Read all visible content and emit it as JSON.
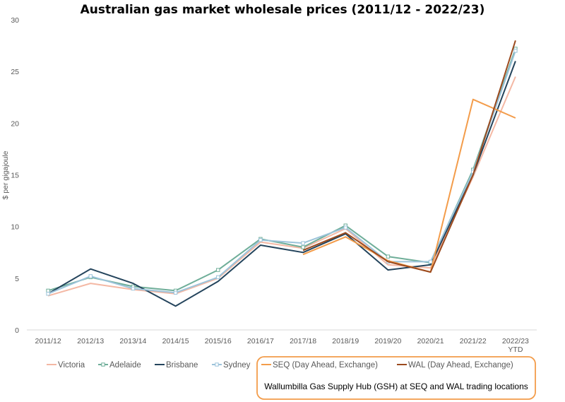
{
  "chart_data": {
    "type": "line",
    "title": "Australian gas market wholesale prices (2011/12 - 2022/23)",
    "xlabel": "",
    "ylabel": "$ per gigajoule",
    "ylim": [
      0,
      30
    ],
    "yticks": [
      0,
      5,
      10,
      15,
      20,
      25,
      30
    ],
    "grid": false,
    "legend_position": "bottom",
    "categories": [
      "2011/12",
      "2012/13",
      "2013/14",
      "2014/15",
      "2015/16",
      "2016/17",
      "2017/18",
      "2018/19",
      "2019/20",
      "2020/21",
      "2021/22",
      "2022/23\nYTD"
    ],
    "series": [
      {
        "name": "Victoria",
        "color": "#f4b8a4",
        "marker": false,
        "values": [
          3.3,
          4.5,
          3.9,
          3.5,
          5.0,
          8.5,
          7.9,
          9.8,
          6.3,
          6.0,
          14.8,
          24.5
        ]
      },
      {
        "name": "Adelaide",
        "color": "#6fae99",
        "marker": true,
        "values": [
          3.8,
          5.1,
          4.2,
          3.8,
          5.8,
          8.8,
          8.0,
          10.1,
          7.1,
          6.5,
          15.5,
          27.2
        ]
      },
      {
        "name": "Brisbane",
        "color": "#24445c",
        "marker": false,
        "values": [
          3.5,
          5.9,
          4.5,
          2.3,
          4.7,
          8.2,
          7.5,
          9.3,
          5.8,
          6.3,
          15.0,
          26.0
        ]
      },
      {
        "name": "Sydney",
        "color": "#9cc3da",
        "marker": true,
        "values": [
          3.5,
          5.2,
          4.0,
          3.6,
          5.1,
          8.7,
          8.4,
          9.9,
          6.6,
          6.6,
          15.3,
          27.0
        ]
      },
      {
        "name": "SEQ (Day Ahead, Exchange)",
        "color": "#f39c4a",
        "marker": false,
        "values": [
          null,
          null,
          null,
          null,
          null,
          null,
          7.3,
          9.0,
          6.7,
          5.6,
          22.3,
          20.5
        ]
      },
      {
        "name": "WAL (Day Ahead, Exchange)",
        "color": "#9b4a1e",
        "marker": false,
        "values": [
          null,
          null,
          null,
          null,
          null,
          null,
          7.7,
          9.4,
          6.6,
          5.6,
          15.0,
          28.0
        ]
      }
    ],
    "annotation": "Wallumbilla Gas Supply Hub (GSH) at SEQ and WAL trading locations",
    "annotation_border_color": "#f39c4a"
  }
}
